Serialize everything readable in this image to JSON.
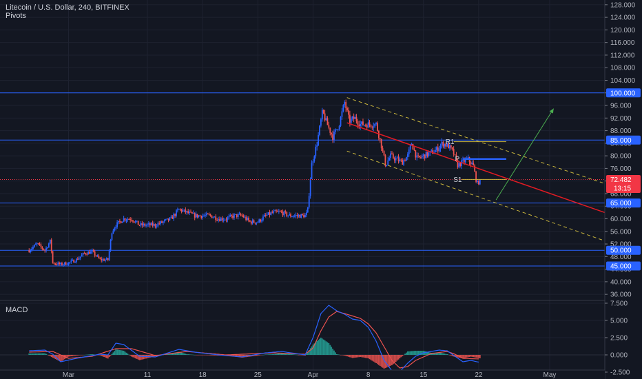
{
  "header": {
    "title": "Litecoin / U.S. Dollar, 240, BITFINEX",
    "indicator": "Pivots"
  },
  "macd_label": "MACD",
  "colors": {
    "background": "#131722",
    "up": "#2962ff",
    "down": "#ef5350",
    "level_line": "#2962ff",
    "regression": "#e31b23",
    "channel": "#c9b53c",
    "target_arrow": "#4caf50",
    "last_price": "#f23645",
    "pivot_r1": "#c9b53c",
    "pivot_p": "#2962ff",
    "pivot_s1": "#c9b53c",
    "macd_line": "#2962ff",
    "signal_line": "#ef5350"
  },
  "chart_data": [
    {
      "type": "candlestick",
      "symbol": "Litecoin / U.S. Dollar",
      "interval": "240",
      "exchange": "BITFINEX",
      "x_ticks": [
        "Mar",
        "11",
        "18",
        "25",
        "Apr",
        "8",
        "15",
        "22",
        "May"
      ],
      "y_ticks": [
        36,
        40,
        44,
        48,
        52,
        56,
        60,
        64,
        68,
        72,
        76,
        80,
        84,
        88,
        92,
        96,
        100,
        104,
        108,
        112,
        116,
        120,
        124,
        128
      ],
      "y_tick_labels": [
        "36.000",
        "40.000",
        "44.000",
        "48.000",
        "52.000",
        "56.000",
        "60.000",
        "64.000",
        "68.000",
        "72.000",
        "76.000",
        "80.000",
        "84.000",
        "88.000",
        "92.000",
        "96.000",
        "100.000",
        "104.000",
        "108.000",
        "112.000",
        "116.000",
        "120.000",
        "124.000",
        "128.000"
      ],
      "ylim": [
        34.5,
        129.5
      ],
      "series_keypoints": [
        {
          "day": -5,
          "price": 50
        },
        {
          "day": -4,
          "price": 52
        },
        {
          "day": -3,
          "price": 50
        },
        {
          "day": -2.3,
          "price": 53
        },
        {
          "day": -2,
          "price": 46
        },
        {
          "day": -1,
          "price": 45.5
        },
        {
          "day": 0,
          "price": 46
        },
        {
          "day": 1,
          "price": 47
        },
        {
          "day": 2,
          "price": 49
        },
        {
          "day": 3,
          "price": 49.5
        },
        {
          "day": 4,
          "price": 47
        },
        {
          "day": 5,
          "price": 47
        },
        {
          "day": 5.5,
          "price": 56
        },
        {
          "day": 6,
          "price": 58
        },
        {
          "day": 7,
          "price": 60
        },
        {
          "day": 8,
          "price": 60
        },
        {
          "day": 9,
          "price": 58
        },
        {
          "day": 10,
          "price": 58
        },
        {
          "day": 11,
          "price": 58
        },
        {
          "day": 12,
          "price": 59
        },
        {
          "day": 13,
          "price": 60
        },
        {
          "day": 14,
          "price": 63
        },
        {
          "day": 15,
          "price": 62
        },
        {
          "day": 16,
          "price": 61
        },
        {
          "day": 17,
          "price": 61
        },
        {
          "day": 18,
          "price": 61
        },
        {
          "day": 19,
          "price": 60
        },
        {
          "day": 20,
          "price": 60
        },
        {
          "day": 21,
          "price": 61
        },
        {
          "day": 22,
          "price": 61
        },
        {
          "day": 23,
          "price": 59
        },
        {
          "day": 24,
          "price": 59
        },
        {
          "day": 25,
          "price": 61
        },
        {
          "day": 26,
          "price": 62
        },
        {
          "day": 27,
          "price": 62
        },
        {
          "day": 28,
          "price": 61
        },
        {
          "day": 29,
          "price": 61
        },
        {
          "day": 30,
          "price": 61
        },
        {
          "day": 30.3,
          "price": 62
        },
        {
          "day": 30.8,
          "price": 77
        },
        {
          "day": 31.5,
          "price": 84
        },
        {
          "day": 32.2,
          "price": 94
        },
        {
          "day": 32.8,
          "price": 90
        },
        {
          "day": 33.5,
          "price": 86
        },
        {
          "day": 34.3,
          "price": 90
        },
        {
          "day": 35,
          "price": 97
        },
        {
          "day": 35.6,
          "price": 91
        },
        {
          "day": 36.3,
          "price": 92
        },
        {
          "day": 37,
          "price": 90
        },
        {
          "day": 38,
          "price": 90
        },
        {
          "day": 39,
          "price": 90
        },
        {
          "day": 39.6,
          "price": 84
        },
        {
          "day": 40.2,
          "price": 77
        },
        {
          "day": 40.8,
          "price": 80
        },
        {
          "day": 41.5,
          "price": 79
        },
        {
          "day": 42.3,
          "price": 78
        },
        {
          "day": 43,
          "price": 80
        },
        {
          "day": 43.5,
          "price": 84
        },
        {
          "day": 44.2,
          "price": 79
        },
        {
          "day": 45,
          "price": 80
        },
        {
          "day": 46,
          "price": 81
        },
        {
          "day": 46.7,
          "price": 82
        },
        {
          "day": 47.4,
          "price": 84
        },
        {
          "day": 48.2,
          "price": 83
        },
        {
          "day": 48.8,
          "price": 81
        },
        {
          "day": 49.3,
          "price": 77
        },
        {
          "day": 50,
          "price": 78
        },
        {
          "day": 50.6,
          "price": 79
        },
        {
          "day": 51.3,
          "price": 77
        },
        {
          "day": 51.8,
          "price": 71
        },
        {
          "day": 52.2,
          "price": 72.48
        }
      ],
      "last_price": 72.482,
      "last_price_label": "72.482",
      "countdown": "13:15",
      "horizontal_levels": [
        {
          "price": 100,
          "label": "100.000"
        },
        {
          "price": 85,
          "label": "85.000"
        },
        {
          "price": 65,
          "label": "65.000"
        },
        {
          "price": 50,
          "label": "50.000"
        },
        {
          "price": 45,
          "label": "45.000"
        }
      ],
      "pivots": [
        {
          "name": "R1",
          "price": 84.5,
          "from_day": 47.8,
          "to_day": 55.5
        },
        {
          "name": "P",
          "price": 79,
          "from_day": 49.0,
          "to_day": 55.5
        },
        {
          "name": "S1",
          "price": 72.5,
          "from_day": 48.8,
          "to_day": 55.5
        }
      ],
      "regression_channel": {
        "from": {
          "day": 35.3,
          "price": 90.5
        },
        "to": {
          "day": 76,
          "price": 55
        },
        "upper_from": {
          "day": 35.3,
          "price": 98.5
        },
        "upper_to": {
          "day": 76,
          "price": 64.5
        },
        "lower_from": {
          "day": 35.3,
          "price": 81.5
        },
        "lower_to": {
          "day": 76,
          "price": 46
        }
      },
      "target_arrow": {
        "from": {
          "day": 54.2,
          "price": 66
        },
        "to": {
          "day": 61.5,
          "price": 95
        }
      }
    },
    {
      "type": "line",
      "name": "MACD",
      "y_ticks": [
        -2.5,
        0,
        2.5,
        5,
        7.5
      ],
      "y_tick_labels": [
        "-2.500",
        "0.000",
        "2.500",
        "5.000",
        "7.500"
      ],
      "ylim": [
        -3.3,
        7.8
      ],
      "macd_keypoints": [
        {
          "day": -5,
          "value": 0.6
        },
        {
          "day": -3,
          "value": 0.7
        },
        {
          "day": -2,
          "value": 0.1
        },
        {
          "day": -1,
          "value": -1.0
        },
        {
          "day": 1,
          "value": -0.5
        },
        {
          "day": 4,
          "value": 0.1
        },
        {
          "day": 5,
          "value": 0.0
        },
        {
          "day": 6,
          "value": 1.7
        },
        {
          "day": 7,
          "value": 1.5
        },
        {
          "day": 9,
          "value": -0.2
        },
        {
          "day": 11,
          "value": -0.3
        },
        {
          "day": 14,
          "value": 0.8
        },
        {
          "day": 16,
          "value": 0.4
        },
        {
          "day": 19,
          "value": 0.0
        },
        {
          "day": 22,
          "value": -0.3
        },
        {
          "day": 25,
          "value": 0.3
        },
        {
          "day": 27,
          "value": 0.5
        },
        {
          "day": 30,
          "value": 0.0
        },
        {
          "day": 31,
          "value": 2.5
        },
        {
          "day": 32,
          "value": 6.0
        },
        {
          "day": 33,
          "value": 7.2
        },
        {
          "day": 34,
          "value": 6.4
        },
        {
          "day": 35,
          "value": 5.9
        },
        {
          "day": 36,
          "value": 5.2
        },
        {
          "day": 37,
          "value": 5.0
        },
        {
          "day": 38,
          "value": 4.0
        },
        {
          "day": 39,
          "value": 2.0
        },
        {
          "day": 40,
          "value": -0.8
        },
        {
          "day": 41,
          "value": -2.3
        },
        {
          "day": 42,
          "value": -2.4
        },
        {
          "day": 43,
          "value": -1.2
        },
        {
          "day": 44,
          "value": -0.2
        },
        {
          "day": 45,
          "value": 0.3
        },
        {
          "day": 47,
          "value": 0.7
        },
        {
          "day": 48,
          "value": 0.6
        },
        {
          "day": 49,
          "value": -0.2
        },
        {
          "day": 50,
          "value": -1.0
        },
        {
          "day": 51,
          "value": -0.8
        },
        {
          "day": 52.2,
          "value": -1.1
        }
      ],
      "signal_keypoints": [
        {
          "day": -5,
          "value": 0.4
        },
        {
          "day": -2,
          "value": 0.5
        },
        {
          "day": 0,
          "value": -0.5
        },
        {
          "day": 3,
          "value": -0.2
        },
        {
          "day": 6,
          "value": 0.9
        },
        {
          "day": 8,
          "value": 0.9
        },
        {
          "day": 11,
          "value": -0.1
        },
        {
          "day": 15,
          "value": 0.5
        },
        {
          "day": 20,
          "value": 0.0
        },
        {
          "day": 26,
          "value": 0.3
        },
        {
          "day": 30,
          "value": 0.1
        },
        {
          "day": 31,
          "value": 1.0
        },
        {
          "day": 32,
          "value": 3.5
        },
        {
          "day": 33,
          "value": 5.5
        },
        {
          "day": 34,
          "value": 6.3
        },
        {
          "day": 35,
          "value": 6.0
        },
        {
          "day": 37,
          "value": 5.3
        },
        {
          "day": 38,
          "value": 4.5
        },
        {
          "day": 39,
          "value": 3.2
        },
        {
          "day": 40,
          "value": 1.2
        },
        {
          "day": 41,
          "value": -0.8
        },
        {
          "day": 42,
          "value": -1.9
        },
        {
          "day": 43,
          "value": -1.7
        },
        {
          "day": 44,
          "value": -0.8
        },
        {
          "day": 46,
          "value": 0.2
        },
        {
          "day": 48,
          "value": 0.5
        },
        {
          "day": 49,
          "value": 0.1
        },
        {
          "day": 50,
          "value": -0.5
        },
        {
          "day": 52.2,
          "value": -0.6
        }
      ]
    }
  ]
}
